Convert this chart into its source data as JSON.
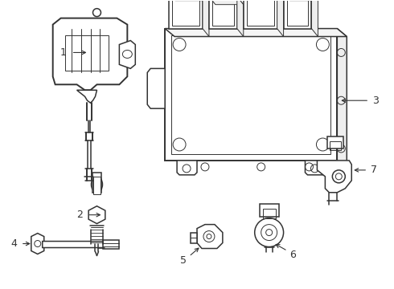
{
  "background_color": "#ffffff",
  "line_color": "#333333",
  "label_color": "#333333",
  "figsize": [
    4.9,
    3.6
  ],
  "dpi": 100,
  "lw_main": 1.1,
  "lw_thin": 0.7,
  "lw_thick": 1.4
}
